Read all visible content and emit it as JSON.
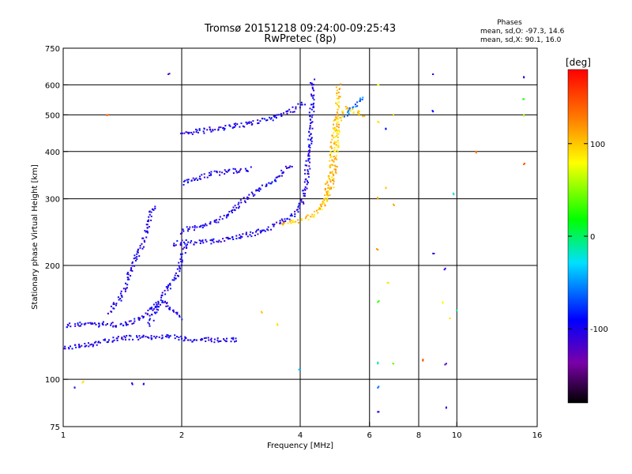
{
  "chart_data": {
    "type": "scatter",
    "title": "Tromsø 20151218 09:24:00-09:25:43",
    "subtitle": "RwPretec (8p)",
    "xlabel": "Frequency [MHz]",
    "ylabel": "Stationary phase Virtual Height [km]",
    "x_scale": "log",
    "y_scale": "log",
    "xlim": [
      1,
      16
    ],
    "ylim": [
      75,
      750
    ],
    "x_ticks": [
      1,
      2,
      4,
      6,
      8,
      10,
      16
    ],
    "y_ticks": [
      75,
      100,
      200,
      300,
      400,
      500,
      600,
      750
    ],
    "x_gridlines": [
      2,
      4,
      6,
      8,
      10
    ],
    "y_gridlines": [
      100,
      200,
      300,
      400,
      500,
      600
    ],
    "grid": true,
    "phases_box": {
      "heading": "Phases",
      "line_o": "mean, sd,O: -97.3, 14.6",
      "line_x": "mean, sd,X:  90.1, 16.0"
    },
    "colorbar": {
      "label": "[deg]",
      "range": [
        -180,
        180
      ],
      "ticks": [
        -100,
        0,
        100
      ],
      "colormap": "rainbow"
    },
    "traces": [
      {
        "phase": -100,
        "points": [
          [
            1.0,
            137
          ],
          [
            1.06,
            140
          ],
          [
            1.12,
            140
          ],
          [
            1.2,
            139
          ],
          [
            1.3,
            140
          ],
          [
            1.4,
            139
          ],
          [
            1.5,
            141
          ],
          [
            1.6,
            148
          ],
          [
            1.7,
            155
          ],
          [
            1.8,
            160
          ],
          [
            1.9,
            152
          ],
          [
            2.0,
            145
          ]
        ]
      },
      {
        "phase": -100,
        "points": [
          [
            1.0,
            122
          ],
          [
            1.1,
            122
          ],
          [
            1.2,
            124
          ],
          [
            1.3,
            127
          ],
          [
            1.4,
            128
          ],
          [
            1.5,
            129
          ],
          [
            1.6,
            129
          ],
          [
            1.8,
            130
          ],
          [
            2.0,
            128
          ],
          [
            2.2,
            127
          ],
          [
            2.5,
            127
          ],
          [
            2.8,
            127
          ]
        ]
      },
      {
        "phase": -100,
        "points": [
          [
            1.3,
            150
          ],
          [
            1.4,
            165
          ],
          [
            1.45,
            180
          ],
          [
            1.5,
            200
          ],
          [
            1.55,
            215
          ],
          [
            1.6,
            230
          ],
          [
            1.65,
            260
          ],
          [
            1.7,
            290
          ]
        ]
      },
      {
        "phase": -100,
        "points": [
          [
            1.65,
            140
          ],
          [
            1.75,
            160
          ],
          [
            1.85,
            175
          ],
          [
            1.95,
            190
          ],
          [
            2.0,
            210
          ],
          [
            2.05,
            230
          ]
        ]
      },
      {
        "phase": -100,
        "points": [
          [
            1.9,
            228
          ],
          [
            2.0,
            230
          ],
          [
            2.2,
            230
          ],
          [
            2.5,
            232
          ],
          [
            2.8,
            238
          ],
          [
            3.0,
            242
          ],
          [
            3.3,
            250
          ],
          [
            3.6,
            262
          ],
          [
            3.9,
            275
          ],
          [
            4.0,
            288
          ],
          [
            4.1,
            310
          ],
          [
            4.15,
            340
          ],
          [
            4.2,
            380
          ],
          [
            4.25,
            430
          ],
          [
            4.28,
            500
          ],
          [
            4.3,
            560
          ],
          [
            4.3,
            620
          ]
        ]
      },
      {
        "phase": -100,
        "points": [
          [
            2.0,
            445
          ],
          [
            2.3,
            455
          ],
          [
            2.7,
            465
          ],
          [
            3.0,
            475
          ],
          [
            3.3,
            485
          ],
          [
            3.6,
            500
          ],
          [
            3.9,
            520
          ],
          [
            4.1,
            540
          ]
        ]
      },
      {
        "phase": -100,
        "points": [
          [
            2.0,
            330
          ],
          [
            2.2,
            340
          ],
          [
            2.4,
            350
          ],
          [
            2.7,
            355
          ],
          [
            3.0,
            360
          ]
        ]
      },
      {
        "phase": -100,
        "points": [
          [
            2.0,
            245
          ],
          [
            2.1,
            250
          ],
          [
            2.3,
            255
          ],
          [
            2.6,
            270
          ],
          [
            2.9,
            300
          ],
          [
            3.2,
            320
          ],
          [
            3.5,
            340
          ],
          [
            3.8,
            370
          ]
        ]
      },
      {
        "phase": 100,
        "points": [
          [
            3.6,
            258
          ],
          [
            3.8,
            260
          ],
          [
            4.0,
            263
          ],
          [
            4.3,
            272
          ],
          [
            4.6,
            290
          ],
          [
            4.8,
            320
          ],
          [
            4.9,
            360
          ],
          [
            4.95,
            410
          ],
          [
            5.0,
            460
          ],
          [
            5.05,
            500
          ],
          [
            5.2,
            520
          ],
          [
            5.5,
            510
          ],
          [
            5.8,
            500
          ]
        ]
      },
      {
        "phase": 100,
        "points": [
          [
            4.5,
            280
          ],
          [
            4.6,
            300
          ],
          [
            4.7,
            330
          ],
          [
            4.8,
            370
          ],
          [
            4.85,
            420
          ],
          [
            4.9,
            480
          ],
          [
            5.0,
            540
          ],
          [
            5.0,
            600
          ]
        ]
      },
      {
        "phase": -60,
        "points": [
          [
            5.2,
            500
          ],
          [
            5.4,
            520
          ],
          [
            5.6,
            540
          ],
          [
            5.8,
            560
          ]
        ]
      }
    ],
    "scattered_points": [
      {
        "x": 6.3,
        "y": 600,
        "phase": 80
      },
      {
        "x": 6.3,
        "y": 480,
        "phase": 90
      },
      {
        "x": 6.3,
        "y": 300,
        "phase": 110
      },
      {
        "x": 6.3,
        "y": 220,
        "phase": 120
      },
      {
        "x": 6.3,
        "y": 160,
        "phase": 30
      },
      {
        "x": 6.3,
        "y": 110,
        "phase": -10
      },
      {
        "x": 6.3,
        "y": 95,
        "phase": -60
      },
      {
        "x": 6.3,
        "y": 82,
        "phase": -100
      },
      {
        "x": 6.6,
        "y": 460,
        "phase": -90
      },
      {
        "x": 6.6,
        "y": 320,
        "phase": 100
      },
      {
        "x": 6.7,
        "y": 180,
        "phase": 90
      },
      {
        "x": 6.9,
        "y": 500,
        "phase": 100
      },
      {
        "x": 6.9,
        "y": 290,
        "phase": 110
      },
      {
        "x": 6.9,
        "y": 110,
        "phase": 40
      },
      {
        "x": 8.2,
        "y": 112,
        "phase": 150
      },
      {
        "x": 8.7,
        "y": 640,
        "phase": -100
      },
      {
        "x": 8.7,
        "y": 510,
        "phase": -90
      },
      {
        "x": 8.7,
        "y": 215,
        "phase": -110
      },
      {
        "x": 9.2,
        "y": 160,
        "phase": 80
      },
      {
        "x": 9.3,
        "y": 195,
        "phase": -110
      },
      {
        "x": 9.4,
        "y": 110,
        "phase": -120
      },
      {
        "x": 9.4,
        "y": 84,
        "phase": -110
      },
      {
        "x": 9.6,
        "y": 145,
        "phase": 90
      },
      {
        "x": 9.8,
        "y": 310,
        "phase": -20
      },
      {
        "x": 10.0,
        "y": 152,
        "phase": -10
      },
      {
        "x": 11.2,
        "y": 400,
        "phase": 130
      },
      {
        "x": 14.8,
        "y": 630,
        "phase": -110
      },
      {
        "x": 14.8,
        "y": 550,
        "phase": 20
      },
      {
        "x": 14.8,
        "y": 500,
        "phase": 60
      },
      {
        "x": 14.8,
        "y": 370,
        "phase": 140
      },
      {
        "x": 1.3,
        "y": 500,
        "phase": 140
      },
      {
        "x": 1.85,
        "y": 640,
        "phase": -120
      },
      {
        "x": 1.5,
        "y": 97,
        "phase": -100
      },
      {
        "x": 1.6,
        "y": 97,
        "phase": -110
      },
      {
        "x": 1.07,
        "y": 95,
        "phase": -110
      },
      {
        "x": 1.12,
        "y": 98,
        "phase": 90
      },
      {
        "x": 3.2,
        "y": 150,
        "phase": 100
      },
      {
        "x": 3.5,
        "y": 140,
        "phase": 90
      },
      {
        "x": 4.0,
        "y": 106,
        "phase": -40
      }
    ]
  }
}
